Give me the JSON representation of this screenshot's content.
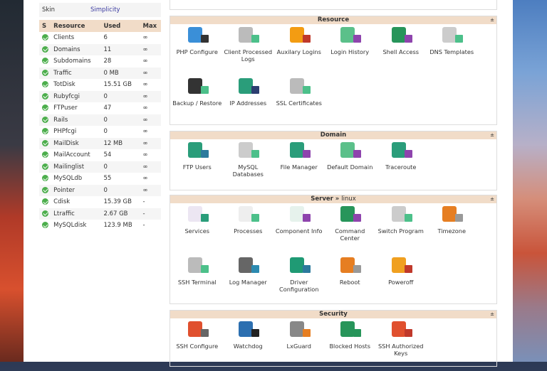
{
  "skin": {
    "label": "Skin",
    "value": "Simplicity"
  },
  "table": {
    "headers": [
      "S",
      "Resource",
      "Used",
      "Max"
    ],
    "rows": [
      [
        "Clients",
        "6",
        "∞"
      ],
      [
        "Domains",
        "11",
        "∞"
      ],
      [
        "Subdomains",
        "28",
        "∞"
      ],
      [
        "Traffic",
        "0 MB",
        "∞"
      ],
      [
        "TotDisk",
        "15.51 GB",
        "∞"
      ],
      [
        "Rubyfcgi",
        "0",
        "∞"
      ],
      [
        "FTPuser",
        "47",
        "∞"
      ],
      [
        "Rails",
        "0",
        "∞"
      ],
      [
        "PHPfcgi",
        "0",
        "∞"
      ],
      [
        "MailDisk",
        "12 MB",
        "∞"
      ],
      [
        "MailAccount",
        "54",
        "∞"
      ],
      [
        "Mailinglist",
        "0",
        "∞"
      ],
      [
        "MySQLdb",
        "55",
        "∞"
      ],
      [
        "Pointer",
        "0",
        "∞"
      ],
      [
        "Cdisk",
        "15.39 GB",
        "-"
      ],
      [
        "Ltraffic",
        "2.67 GB",
        "-"
      ],
      [
        "MySQLdisk",
        "123.9 MB",
        "-"
      ]
    ]
  },
  "sections": [
    {
      "title": "Resource",
      "sub": "",
      "pin": "±",
      "items": [
        {
          "label": "PHP Configure",
          "icon": "php-icon",
          "color": "#3a8fd8",
          "badge": "#333"
        },
        {
          "label": "Client Processed Logs",
          "icon": "client-logs-icon",
          "color": "#bbb",
          "badge": "#4cc08a"
        },
        {
          "label": "Auxilary Logins",
          "icon": "user-icon",
          "color": "#f39c12",
          "badge": "#c0392b"
        },
        {
          "label": "Login History",
          "icon": "book-icon",
          "color": "#5bc08a",
          "badge": "#8e44ad"
        },
        {
          "label": "Shell Access",
          "icon": "shell-user-icon",
          "color": "#27955a",
          "badge": "#8e44ad"
        },
        {
          "label": "DNS Templates",
          "icon": "dns-icon",
          "color": "#ccc",
          "badge": "#4cc08a"
        },
        {
          "label": "Backup / Restore",
          "icon": "backup-icon",
          "color": "#333",
          "badge": "#4cc08a"
        },
        {
          "label": "IP Addresses",
          "icon": "ip-icon",
          "color": "#2a9d7a",
          "badge": "#2c3e70"
        },
        {
          "label": "SSL Certificates",
          "icon": "lock-icon",
          "color": "#bbb",
          "badge": "#4cc08a"
        }
      ]
    },
    {
      "title": "Domain",
      "sub": "",
      "pin": "±",
      "items": [
        {
          "label": "FTP Users",
          "icon": "ftp-icon",
          "color": "#2a9d7a",
          "badge": "#2c7a9d"
        },
        {
          "label": "MySQL Databases",
          "icon": "mysql-icon",
          "color": "#ccc",
          "badge": "#4cc08a"
        },
        {
          "label": "File Manager",
          "icon": "folder-icon",
          "color": "#2a9d7a",
          "badge": "#8e44ad"
        },
        {
          "label": "Default Domain",
          "icon": "domain-user-icon",
          "color": "#5bc08a",
          "badge": "#8e44ad"
        },
        {
          "label": "Traceroute",
          "icon": "search-icon",
          "color": "#2a9d7a",
          "badge": "#8e44ad"
        }
      ]
    },
    {
      "title": "Server »",
      "sub": "linux",
      "pin": "±",
      "items": [
        {
          "label": "Services",
          "icon": "services-icon",
          "color": "#ece6f2",
          "badge": "#2a9d7a"
        },
        {
          "label": "Processes",
          "icon": "processes-icon",
          "color": "#eee",
          "badge": "#4cc08a"
        },
        {
          "label": "Component Info",
          "icon": "component-icon",
          "color": "#e6f2ec",
          "badge": "#8e44ad"
        },
        {
          "label": "Command Center",
          "icon": "server-icon",
          "color": "#27955a",
          "badge": "#8e44ad"
        },
        {
          "label": "Switch Program",
          "icon": "server-icon",
          "color": "#ccc",
          "badge": "#4cc08a"
        },
        {
          "label": "Timezone",
          "icon": "server-icon",
          "color": "#e67e22",
          "badge": "#999"
        },
        {
          "label": "SSH Terminal",
          "icon": "terminal-user-icon",
          "color": "#bbb",
          "badge": "#4cc08a"
        },
        {
          "label": "Log Manager",
          "icon": "log-icon",
          "color": "#666",
          "badge": "#2c8ab0"
        },
        {
          "label": "Driver Configuration",
          "icon": "driver-icon",
          "color": "#1f9a74",
          "badge": "#2c7a9d"
        },
        {
          "label": "Reboot",
          "icon": "server-icon",
          "color": "#e67e22",
          "badge": "#999"
        },
        {
          "label": "Poweroff",
          "icon": "server-icon",
          "color": "#f0a020",
          "badge": "#c0392b"
        }
      ]
    },
    {
      "title": "Security",
      "sub": "",
      "pin": "±",
      "items": [
        {
          "label": "SSH Configure",
          "icon": "ssh-config-icon",
          "color": "#e0502e",
          "badge": "#666"
        },
        {
          "label": "Watchdog",
          "icon": "watchdog-icon",
          "color": "#2c6fb0",
          "badge": "#222"
        },
        {
          "label": "LxGuard",
          "icon": "shield-icon",
          "color": "#888",
          "badge": "#e67e22"
        },
        {
          "label": "Blocked Hosts",
          "icon": "blocked-icon",
          "color": "#27955a",
          "badge": "#27955a"
        },
        {
          "label": "SSH Authorized Keys",
          "icon": "ssh-keys-icon",
          "color": "#e0502e",
          "badge": "#c0392b"
        }
      ]
    }
  ]
}
